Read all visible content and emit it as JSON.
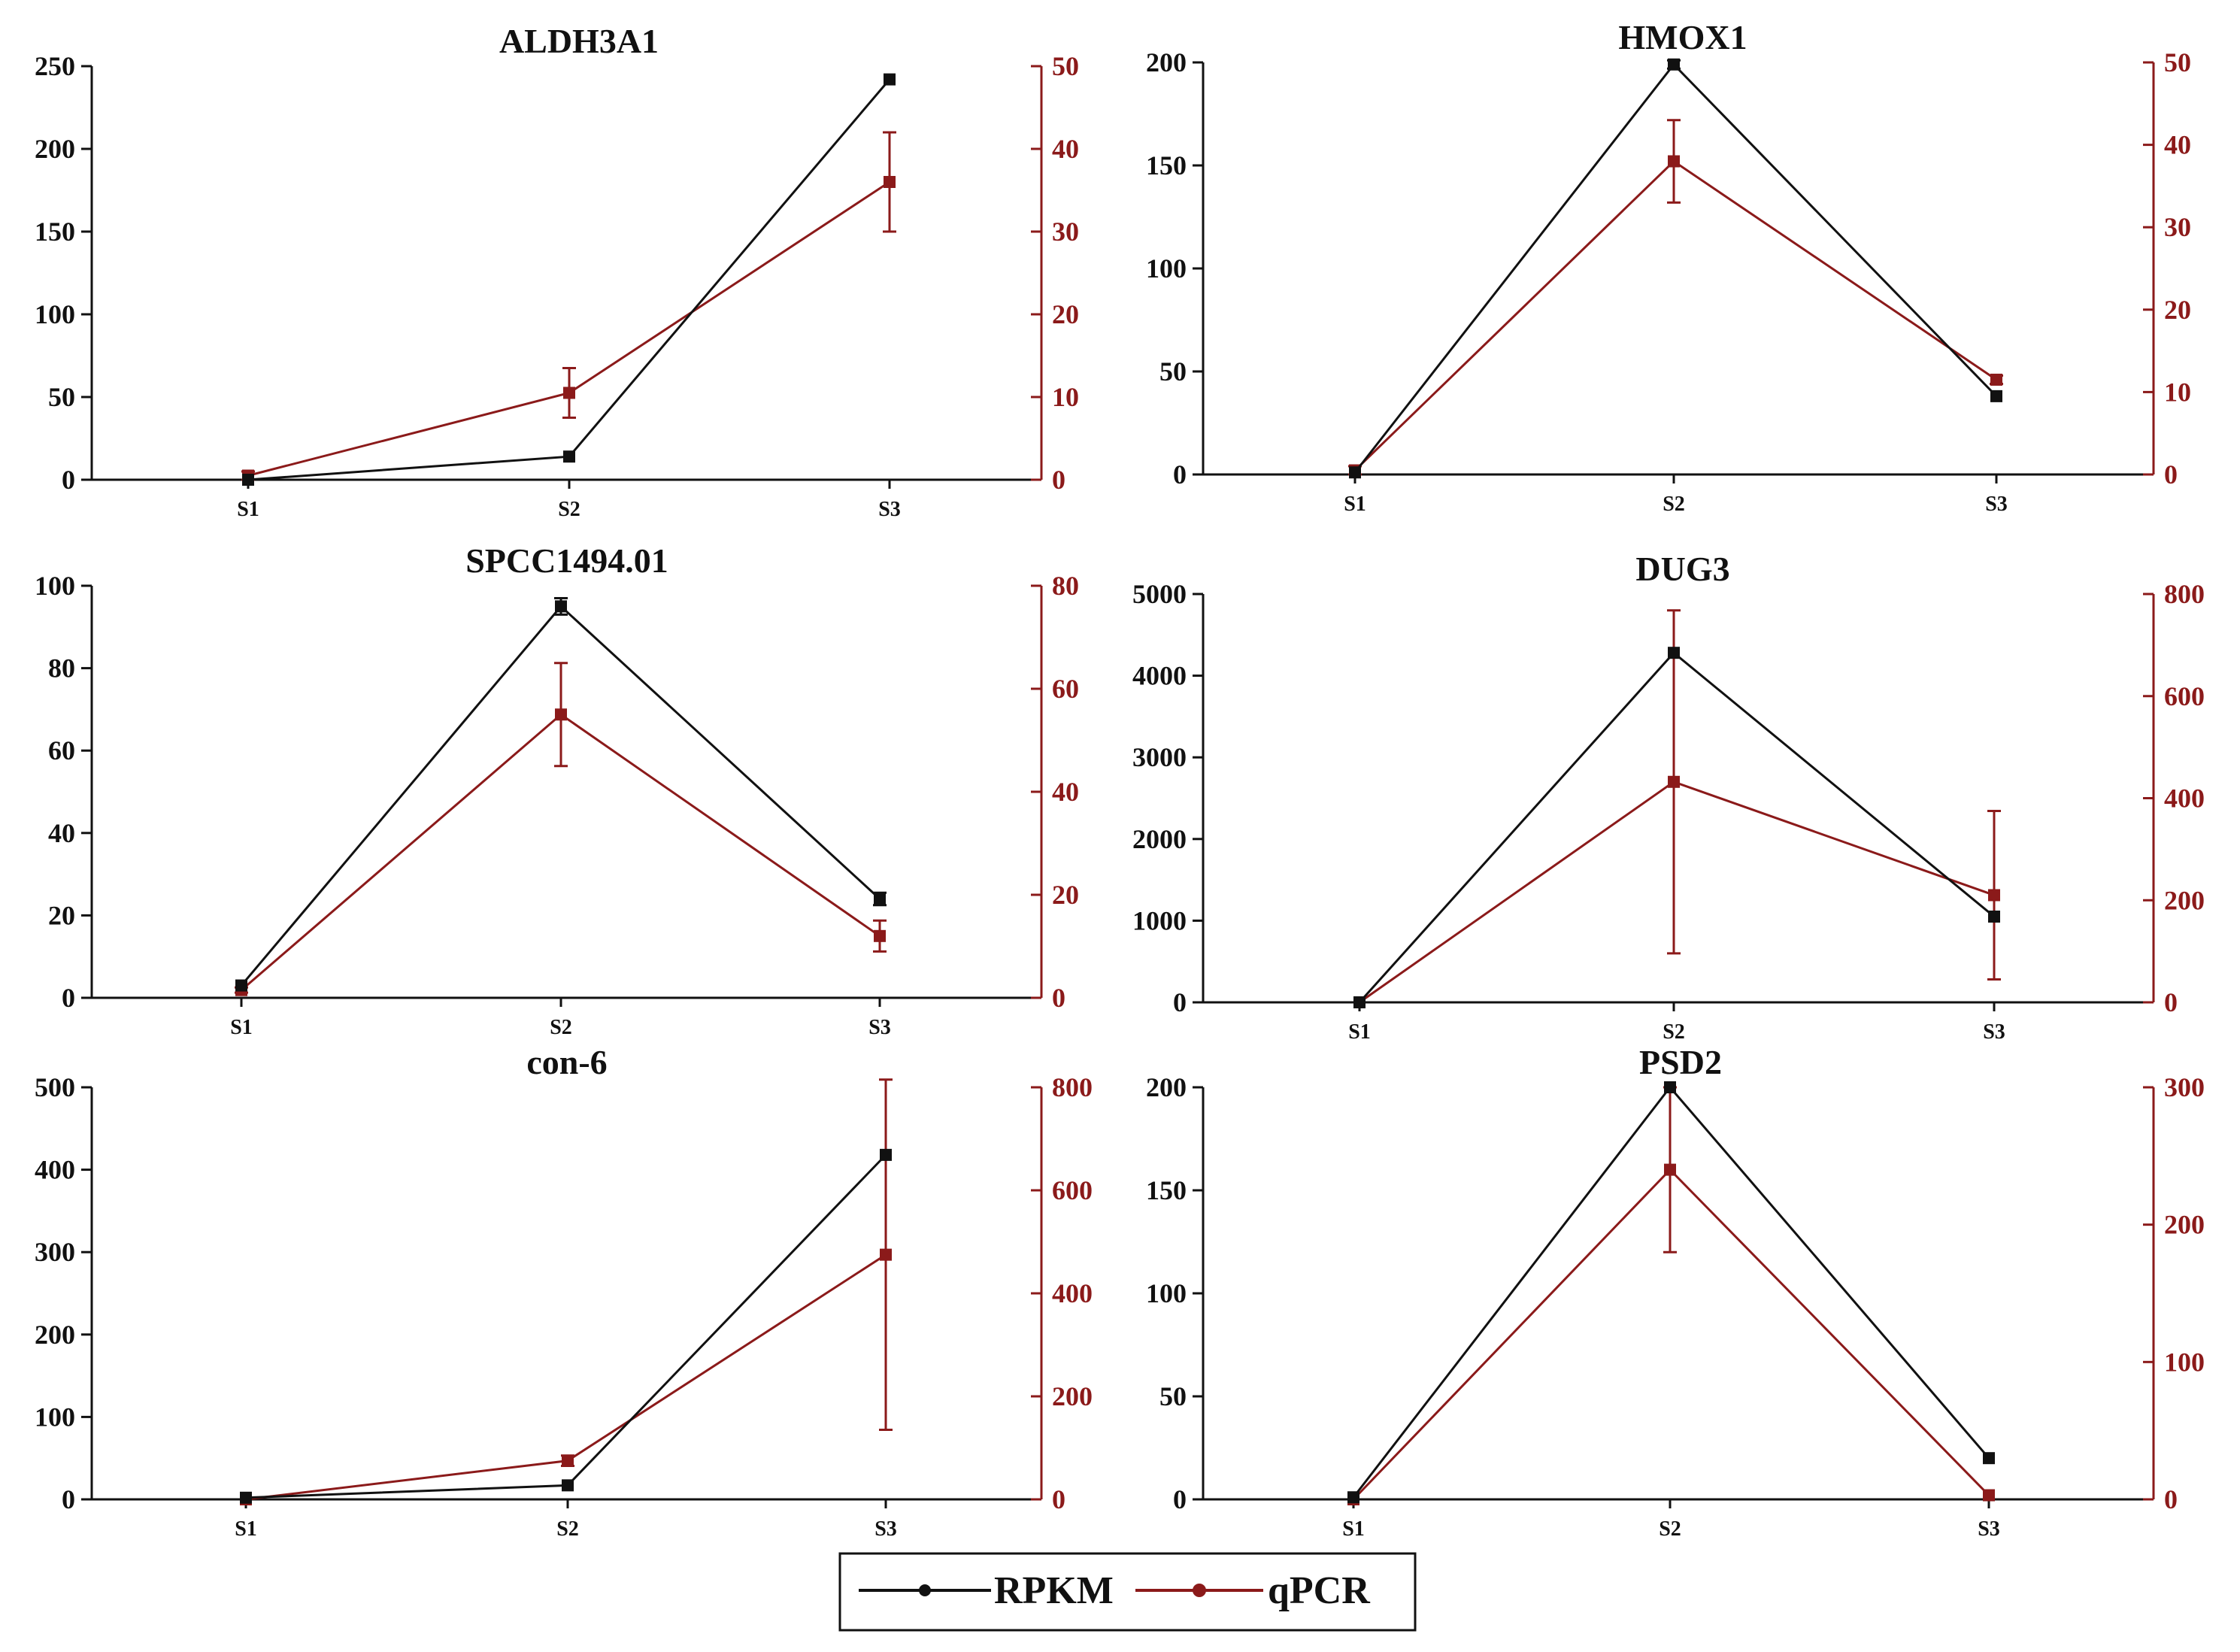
{
  "colors": {
    "rpkm": "#111111",
    "qpcr": "#8b1a1a",
    "axis_left": "#111111",
    "axis_right": "#8b1a1a"
  },
  "legend": {
    "items": [
      {
        "label": "RPKM",
        "series": "rpkm"
      },
      {
        "label": "qPCR",
        "series": "qpcr"
      }
    ]
  },
  "chart_data": [
    {
      "type": "line",
      "title": "ALDH3A1",
      "categories": [
        "S1",
        "S2",
        "S3"
      ],
      "y_left": {
        "lim": [
          0,
          250
        ],
        "ticks": [
          0,
          50,
          100,
          150,
          200,
          250
        ]
      },
      "y_right": {
        "lim": [
          0,
          50
        ],
        "ticks": [
          0,
          10,
          20,
          30,
          40,
          50
        ]
      },
      "series": [
        {
          "name": "RPKM",
          "axis": "left",
          "values": [
            0,
            14,
            242
          ],
          "errors": [
            0,
            0,
            0
          ]
        },
        {
          "name": "qPCR",
          "axis": "right",
          "values": [
            0.5,
            10.5,
            36
          ],
          "errors": [
            0.5,
            3,
            6
          ]
        }
      ]
    },
    {
      "type": "line",
      "title": "HMOX1",
      "categories": [
        "S1",
        "S2",
        "S3"
      ],
      "y_left": {
        "lim": [
          0,
          200
        ],
        "ticks": [
          0,
          50,
          100,
          150,
          200
        ]
      },
      "y_right": {
        "lim": [
          0,
          50
        ],
        "ticks": [
          0,
          10,
          20,
          30,
          40,
          50
        ]
      },
      "series": [
        {
          "name": "RPKM",
          "axis": "left",
          "values": [
            1,
            199,
            38
          ],
          "errors": [
            0,
            2,
            0
          ]
        },
        {
          "name": "qPCR",
          "axis": "right",
          "values": [
            0.5,
            38,
            11.5
          ],
          "errors": [
            0.5,
            5,
            0.5
          ]
        }
      ]
    },
    {
      "type": "line",
      "title": "SPCC1494.01",
      "categories": [
        "S1",
        "S2",
        "S3"
      ],
      "y_left": {
        "lim": [
          0,
          100
        ],
        "ticks": [
          0,
          20,
          40,
          60,
          80,
          100
        ]
      },
      "y_right": {
        "lim": [
          0,
          80
        ],
        "ticks": [
          0,
          20,
          40,
          60,
          80
        ]
      },
      "series": [
        {
          "name": "RPKM",
          "axis": "left",
          "values": [
            3,
            95,
            24
          ],
          "errors": [
            0,
            2,
            1.5
          ]
        },
        {
          "name": "qPCR",
          "axis": "right",
          "values": [
            1.5,
            55,
            12
          ],
          "errors": [
            0.5,
            10,
            3
          ]
        }
      ]
    },
    {
      "type": "line",
      "title": "DUG3",
      "categories": [
        "S1",
        "S2",
        "S3"
      ],
      "y_left": {
        "lim": [
          0,
          5000
        ],
        "ticks": [
          0,
          1000,
          2000,
          3000,
          4000,
          5000
        ]
      },
      "y_right": {
        "lim": [
          0,
          800
        ],
        "ticks": [
          0,
          200,
          400,
          600,
          800
        ]
      },
      "series": [
        {
          "name": "RPKM",
          "axis": "left",
          "values": [
            0,
            4280,
            1050
          ],
          "errors": [
            0,
            0,
            0
          ]
        },
        {
          "name": "qPCR",
          "axis": "right",
          "values": [
            0,
            432,
            210
          ],
          "errors": [
            0,
            336,
            165
          ]
        }
      ]
    },
    {
      "type": "line",
      "title": "con-6",
      "categories": [
        "S1",
        "S2",
        "S3"
      ],
      "y_left": {
        "lim": [
          0,
          500
        ],
        "ticks": [
          0,
          100,
          200,
          300,
          400,
          500
        ]
      },
      "y_right": {
        "lim": [
          0,
          800
        ],
        "ticks": [
          0,
          200,
          400,
          600,
          800
        ]
      },
      "series": [
        {
          "name": "RPKM",
          "axis": "left",
          "values": [
            2,
            17,
            418
          ],
          "errors": [
            0,
            0,
            0
          ]
        },
        {
          "name": "qPCR",
          "axis": "right",
          "values": [
            0,
            75,
            475
          ],
          "errors": [
            0,
            10,
            340
          ]
        }
      ]
    },
    {
      "type": "line",
      "title": "PSD2",
      "categories": [
        "S1",
        "S2",
        "S3"
      ],
      "y_left": {
        "lim": [
          0,
          200
        ],
        "ticks": [
          0,
          50,
          100,
          150,
          200
        ]
      },
      "y_right": {
        "lim": [
          0,
          300
        ],
        "ticks": [
          0,
          100,
          200,
          300
        ]
      },
      "series": [
        {
          "name": "RPKM",
          "axis": "left",
          "values": [
            1,
            200,
            20
          ],
          "errors": [
            0,
            0,
            0
          ]
        },
        {
          "name": "qPCR",
          "axis": "right",
          "values": [
            0,
            240,
            3
          ],
          "errors": [
            0,
            60,
            0
          ]
        }
      ]
    }
  ]
}
